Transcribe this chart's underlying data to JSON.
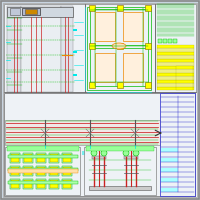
{
  "bg_color": "#c8d4e0",
  "paper_color": "#eef2f6",
  "white": "#ffffff",
  "cyan": "#00e8e8",
  "green": "#00bb00",
  "red": "#cc2222",
  "orange": "#ee8800",
  "yellow": "#ffff00",
  "dark_gray": "#555555",
  "blue": "#2222cc",
  "light_gray": "#cccccc",
  "panel_bg": "#eef2f6",
  "pink_fill": "#ffdddd"
}
